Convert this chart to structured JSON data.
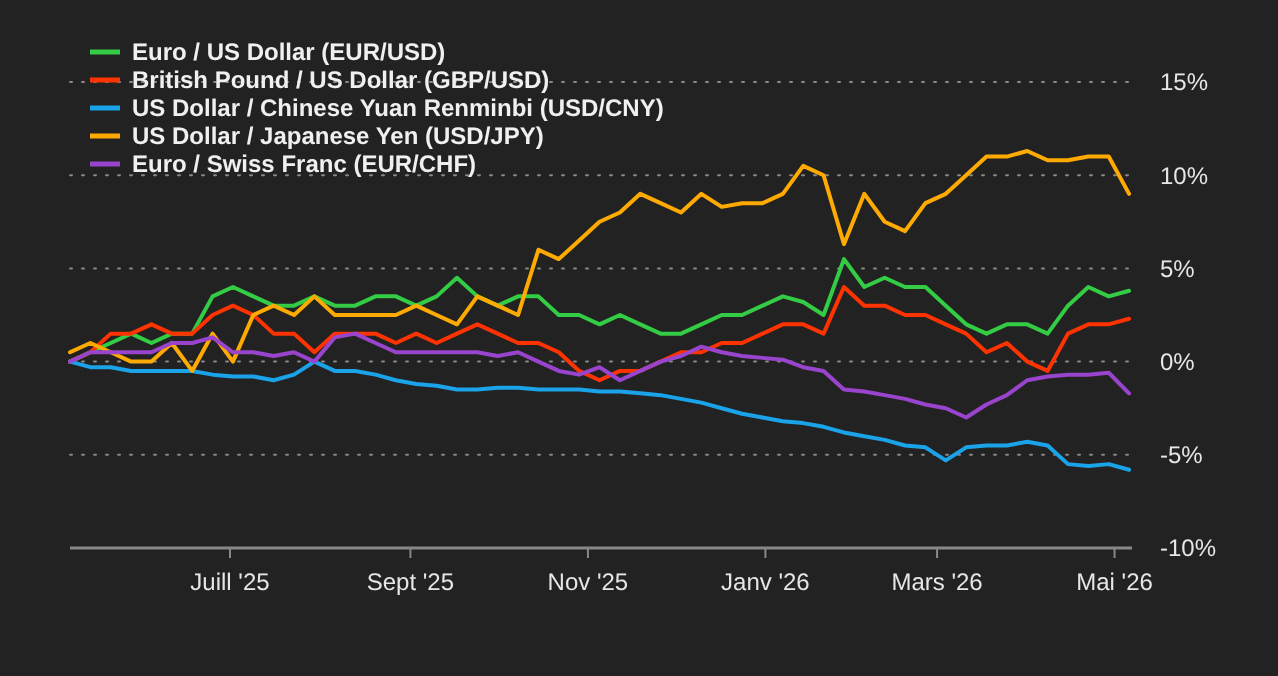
{
  "chart_data": {
    "type": "line",
    "x": [
      "2025-05-07",
      "2025-05-14",
      "2025-05-21",
      "2025-05-28",
      "2025-06-04",
      "2025-06-11",
      "2025-06-18",
      "2025-06-25",
      "2025-07-02",
      "2025-07-09",
      "2025-07-16",
      "2025-07-23",
      "2025-07-30",
      "2025-08-06",
      "2025-08-13",
      "2025-08-20",
      "2025-08-27",
      "2025-09-03",
      "2025-09-10",
      "2025-09-17",
      "2025-09-24",
      "2025-10-01",
      "2025-10-08",
      "2025-10-15",
      "2025-10-22",
      "2025-10-29",
      "2025-11-05",
      "2025-11-12",
      "2025-11-19",
      "2025-11-26",
      "2025-12-03",
      "2025-12-10",
      "2025-12-17",
      "2025-12-24",
      "2025-12-31",
      "2026-01-07",
      "2026-01-14",
      "2026-01-21",
      "2026-01-28",
      "2026-02-04",
      "2026-02-11",
      "2026-02-18",
      "2026-02-25",
      "2026-03-04",
      "2026-03-11",
      "2026-03-18",
      "2026-03-25",
      "2026-04-01",
      "2026-04-08",
      "2026-04-15",
      "2026-04-22",
      "2026-04-29",
      "2026-05-06"
    ],
    "series": [
      {
        "name": "Euro / US Dollar (EUR/USD)",
        "color": "#33cc44",
        "values": [
          0,
          0.5,
          1,
          1.5,
          1,
          1.5,
          1.5,
          3.5,
          4,
          3.5,
          3,
          3,
          3.5,
          3,
          3,
          3.5,
          3.5,
          3,
          3.5,
          4.5,
          3.5,
          3,
          3.5,
          3.5,
          2.5,
          2.5,
          2,
          2.5,
          2,
          1.5,
          1.5,
          2,
          2.5,
          2.5,
          3,
          3.5,
          3.2,
          2.5,
          5.5,
          4,
          4.5,
          4,
          4,
          3,
          2,
          1.5,
          2,
          2,
          1.5,
          3,
          4,
          3.5,
          3.8
        ]
      },
      {
        "name": "British Pound / US Dollar (GBP/USD)",
        "color": "#ff3300",
        "values": [
          0,
          0.5,
          1.5,
          1.5,
          2,
          1.5,
          1.5,
          2.5,
          3,
          2.5,
          1.5,
          1.5,
          0.5,
          1.5,
          1.5,
          1.5,
          1,
          1.5,
          1,
          1.5,
          2,
          1.5,
          1,
          1,
          0.5,
          -0.5,
          -1,
          -0.5,
          -0.5,
          0,
          0.5,
          0.5,
          1,
          1,
          1.5,
          2,
          2,
          1.5,
          4,
          3,
          3,
          2.5,
          2.5,
          2,
          1.5,
          0.5,
          1,
          0,
          -0.5,
          1.5,
          2,
          2,
          2.3
        ]
      },
      {
        "name": "US Dollar / Chinese Yuan Renminbi (USD/CNY)",
        "color": "#1aa3e8",
        "values": [
          0,
          -0.3,
          -0.3,
          -0.5,
          -0.5,
          -0.5,
          -0.5,
          -0.7,
          -0.8,
          -0.8,
          -1,
          -0.7,
          0,
          -0.5,
          -0.5,
          -0.7,
          -1,
          -1.2,
          -1.3,
          -1.5,
          -1.5,
          -1.4,
          -1.4,
          -1.5,
          -1.5,
          -1.5,
          -1.6,
          -1.6,
          -1.7,
          -1.8,
          -2,
          -2.2,
          -2.5,
          -2.8,
          -3,
          -3.2,
          -3.3,
          -3.5,
          -3.8,
          -4,
          -4.2,
          -4.5,
          -4.6,
          -5.3,
          -4.6,
          -4.5,
          -4.5,
          -4.3,
          -4.5,
          -5.5,
          -5.6,
          -5.5,
          -5.8
        ]
      },
      {
        "name": "US Dollar / Japanese Yen (USD/JPY)",
        "color": "#ffaa00",
        "values": [
          0.5,
          1,
          0.5,
          0,
          0,
          1,
          -0.5,
          1.5,
          0,
          2.5,
          3,
          2.5,
          3.5,
          2.5,
          2.5,
          2.5,
          2.5,
          3,
          2.5,
          2,
          3.5,
          3,
          2.5,
          6,
          5.5,
          6.5,
          7.5,
          8,
          9,
          8.5,
          8,
          9,
          8.3,
          8.5,
          8.5,
          9,
          10.5,
          10,
          6.3,
          9,
          7.5,
          7,
          8.5,
          9,
          10,
          11,
          11,
          11.3,
          10.8,
          10.8,
          11,
          11,
          9
        ]
      },
      {
        "name": "Euro / Swiss Franc (EUR/CHF)",
        "color": "#9944cc",
        "values": [
          0,
          0.5,
          0.5,
          0.5,
          0.5,
          1,
          1,
          1.3,
          0.5,
          0.5,
          0.3,
          0.5,
          0,
          1.3,
          1.5,
          1,
          0.5,
          0.5,
          0.5,
          0.5,
          0.5,
          0.3,
          0.5,
          0,
          -0.5,
          -0.7,
          -0.3,
          -1,
          -0.5,
          0,
          0.3,
          0.8,
          0.5,
          0.3,
          0.2,
          0.1,
          -0.3,
          -0.5,
          -1.5,
          -1.6,
          -1.8,
          -2,
          -2.3,
          -2.5,
          -3,
          -2.3,
          -1.8,
          -1,
          -0.8,
          -0.7,
          -0.7,
          -0.6,
          -1.7
        ]
      }
    ],
    "xlim": [
      "2025-05-07",
      "2026-05-07"
    ],
    "xticks": [
      {
        "value": "2025-07-01",
        "label": "Juill '25"
      },
      {
        "value": "2025-09-01",
        "label": "Sept '25"
      },
      {
        "value": "2025-11-01",
        "label": "Nov '25"
      },
      {
        "value": "2026-01-01",
        "label": "Janv '26"
      },
      {
        "value": "2026-03-01",
        "label": "Mars '26"
      },
      {
        "value": "2026-05-01",
        "label": "Mai '26"
      }
    ],
    "ylim": [
      -10,
      15
    ],
    "yticks": [
      {
        "value": -10,
        "label": "-10%"
      },
      {
        "value": -5,
        "label": "-5%"
      },
      {
        "value": 0,
        "label": "0%"
      },
      {
        "value": 5,
        "label": "5%"
      },
      {
        "value": 10,
        "label": "10%"
      },
      {
        "value": 15,
        "label": "15%"
      }
    ],
    "grid": "y",
    "legend": "top left",
    "line_style": "solid",
    "marker": "none"
  }
}
